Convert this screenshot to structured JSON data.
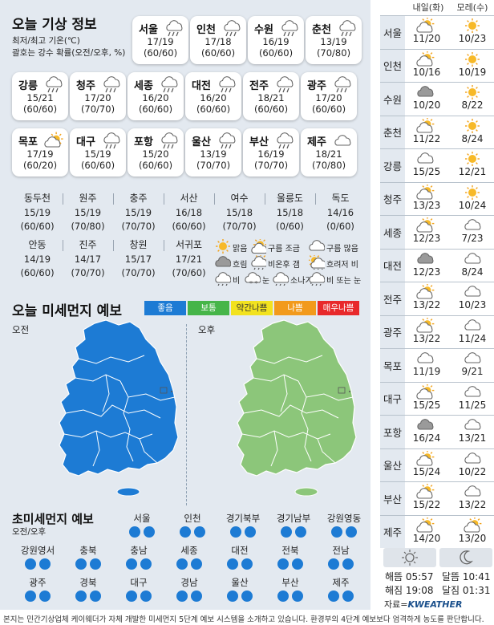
{
  "forecast": {
    "title": "오늘 기상 정보",
    "subtitle1": "최저/최고 기온(℃)",
    "subtitle2": "괄호는 강수 확률(오전/오후, %)",
    "cards": [
      {
        "city": "서울",
        "temp": "17/19",
        "prob": "(60/60)",
        "icon": "rain"
      },
      {
        "city": "인천",
        "temp": "17/18",
        "prob": "(60/60)",
        "icon": "rain"
      },
      {
        "city": "수원",
        "temp": "16/19",
        "prob": "(60/60)",
        "icon": "rain"
      },
      {
        "city": "춘천",
        "temp": "13/19",
        "prob": "(70/80)",
        "icon": "rain"
      },
      {
        "city": "강릉",
        "temp": "15/21",
        "prob": "(60/60)",
        "icon": "rain"
      },
      {
        "city": "청주",
        "temp": "17/20",
        "prob": "(70/70)",
        "icon": "rain"
      },
      {
        "city": "세종",
        "temp": "16/20",
        "prob": "(60/60)",
        "icon": "rain"
      },
      {
        "city": "대전",
        "temp": "16/20",
        "prob": "(60/60)",
        "icon": "rain"
      },
      {
        "city": "전주",
        "temp": "18/21",
        "prob": "(60/60)",
        "icon": "rain"
      },
      {
        "city": "광주",
        "temp": "17/20",
        "prob": "(60/60)",
        "icon": "rain"
      },
      {
        "city": "목포",
        "temp": "17/19",
        "prob": "(60/20)",
        "icon": "suncloud"
      },
      {
        "city": "대구",
        "temp": "15/19",
        "prob": "(60/60)",
        "icon": "rain"
      },
      {
        "city": "포항",
        "temp": "15/20",
        "prob": "(60/60)",
        "icon": "rain"
      },
      {
        "city": "울산",
        "temp": "13/19",
        "prob": "(70/70)",
        "icon": "rain"
      },
      {
        "city": "부산",
        "temp": "16/19",
        "prob": "(70/70)",
        "icon": "rain"
      },
      {
        "city": "제주",
        "temp": "18/21",
        "prob": "(70/80)",
        "icon": "cloud"
      }
    ],
    "table_row1": [
      {
        "city": "동두천",
        "temp": "15/19",
        "prob": "(60/60)"
      },
      {
        "city": "원주",
        "temp": "15/19",
        "prob": "(70/80)"
      },
      {
        "city": "충주",
        "temp": "15/19",
        "prob": "(70/70)"
      },
      {
        "city": "서산",
        "temp": "16/18",
        "prob": "(60/60)"
      },
      {
        "city": "여수",
        "temp": "15/18",
        "prob": "(70/70)"
      },
      {
        "city": "울릉도",
        "temp": "15/18",
        "prob": "(0/60)"
      },
      {
        "city": "독도",
        "temp": "14/16",
        "prob": "(0/60)"
      }
    ],
    "table_row2": [
      {
        "city": "안동",
        "temp": "14/19",
        "prob": "(60/60)"
      },
      {
        "city": "진주",
        "temp": "14/17",
        "prob": "(70/70)"
      },
      {
        "city": "창원",
        "temp": "15/17",
        "prob": "(70/70)"
      },
      {
        "city": "서귀포",
        "temp": "17/21",
        "prob": "(70/60)"
      }
    ],
    "legend": [
      {
        "label": "맑음",
        "icon": "sun"
      },
      {
        "label": "구름 조금",
        "icon": "suncloud"
      },
      {
        "label": "구름 많음",
        "icon": "cloud"
      },
      {
        "label": "흐림",
        "icon": "darkcloud"
      },
      {
        "label": "비온후 갬",
        "icon": "raincleared"
      },
      {
        "label": "흐려저 비",
        "icon": "sunrain"
      },
      {
        "label": "비",
        "icon": "rain"
      },
      {
        "label": "눈",
        "icon": "snow"
      },
      {
        "label": "소나기",
        "icon": "shower"
      },
      {
        "label": "비 또는 눈",
        "icon": "rainsnow"
      }
    ]
  },
  "dust": {
    "title": "오늘 미세먼지 예보",
    "scale": [
      {
        "label": "좋음",
        "color": "#1d7bd4"
      },
      {
        "label": "보통",
        "color": "#46b549"
      },
      {
        "label": "약간나쁨",
        "color": "#f2e21f"
      },
      {
        "label": "나쁨",
        "color": "#f29a1c"
      },
      {
        "label": "매우나쁨",
        "color": "#e8292b"
      }
    ],
    "am_label": "오전",
    "pm_label": "오후",
    "am_color": "#1d7bd4",
    "pm_color": "#8cc67a"
  },
  "pm25": {
    "title": "초미세먼지 예보",
    "subtitle": "오전/오후",
    "row1": [
      "서울",
      "인천",
      "경기북부",
      "경기남부",
      "강원영동"
    ],
    "row2": [
      "강원영서",
      "충북",
      "충남",
      "세종",
      "대전",
      "전북",
      "전남"
    ],
    "row3": [
      "광주",
      "경북",
      "대구",
      "경남",
      "울산",
      "부산",
      "제주"
    ],
    "dot_color": "#1d7bd4"
  },
  "weekly": {
    "head1": "내일(화)",
    "head2": "모레(수)",
    "rows": [
      {
        "city": "서울",
        "t1": "11/20",
        "t2": "10/23",
        "i1": "suncloud",
        "i2": "sun"
      },
      {
        "city": "인천",
        "t1": "10/16",
        "t2": "10/19",
        "i1": "suncloud",
        "i2": "sun"
      },
      {
        "city": "수원",
        "t1": "10/20",
        "t2": "8/22",
        "i1": "darkcloud",
        "i2": "sun"
      },
      {
        "city": "춘천",
        "t1": "11/22",
        "t2": "8/24",
        "i1": "suncloud",
        "i2": "sun"
      },
      {
        "city": "강릉",
        "t1": "15/25",
        "t2": "12/21",
        "i1": "cloud",
        "i2": "sun"
      },
      {
        "city": "청주",
        "t1": "13/23",
        "t2": "10/24",
        "i1": "suncloud",
        "i2": "sun"
      },
      {
        "city": "세종",
        "t1": "12/23",
        "t2": "7/23",
        "i1": "suncloud",
        "i2": "cloud"
      },
      {
        "city": "대전",
        "t1": "12/23",
        "t2": "8/24",
        "i1": "darkcloud",
        "i2": "cloud"
      },
      {
        "city": "전주",
        "t1": "13/22",
        "t2": "10/23",
        "i1": "suncloud",
        "i2": "cloud"
      },
      {
        "city": "광주",
        "t1": "13/22",
        "t2": "11/24",
        "i1": "suncloud",
        "i2": "cloud"
      },
      {
        "city": "목포",
        "t1": "11/19",
        "t2": "9/21",
        "i1": "cloud",
        "i2": "cloud"
      },
      {
        "city": "대구",
        "t1": "15/25",
        "t2": "11/25",
        "i1": "suncloud",
        "i2": "cloud"
      },
      {
        "city": "포항",
        "t1": "16/24",
        "t2": "13/21",
        "i1": "darkcloud",
        "i2": "cloud"
      },
      {
        "city": "울산",
        "t1": "15/24",
        "t2": "10/22",
        "i1": "suncloud",
        "i2": "cloud"
      },
      {
        "city": "부산",
        "t1": "15/22",
        "t2": "13/22",
        "i1": "suncloud",
        "i2": "cloud"
      },
      {
        "city": "제주",
        "t1": "14/20",
        "t2": "13/20",
        "i1": "suncloud",
        "i2": "suncloud"
      }
    ],
    "sunrise": "해뜸 05:57",
    "sunset": "해짐 19:08",
    "moonrise": "달뜸 10:41",
    "moonset": "달짐 01:31",
    "source_prefix": "자료=",
    "source_brand": "KWEATHER"
  },
  "footer": "본지는 민간기상업체 케이웨더가 자체 개발한 미세먼지 5단계 예보 시스템을 소개하고 있습니다. 환경부의 4단계 예보보다 엄격하게 농도를 판단합니다."
}
